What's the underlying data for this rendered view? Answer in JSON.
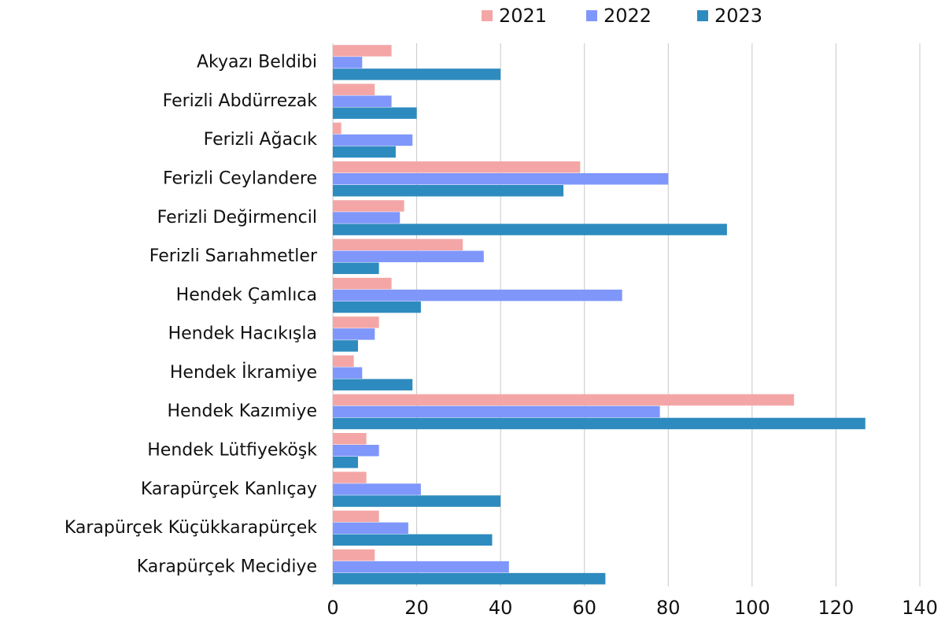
{
  "chart_data": {
    "type": "bar",
    "orientation": "horizontal",
    "categories": [
      "Akyazı Beldibi",
      "Ferizli Abdürrezak",
      "Ferizli Ağacık",
      "Ferizli Ceylandere",
      "Ferizli Değirmencil",
      "Ferizli Sarıahmetler",
      "Hendek Çamlıca",
      "Hendek Hacıkışla",
      "Hendek İkramiye",
      "Hendek Kazımiye",
      "Hendek Lütfiyeköşk",
      "Karapürçek Kanlıçay",
      "Karapürçek Küçükkarapürçek",
      "Karapürçek Mecidiye"
    ],
    "series": [
      {
        "name": "2021",
        "color": "#f4a6a6",
        "values": [
          14,
          10,
          2,
          59,
          17,
          31,
          14,
          11,
          5,
          110,
          8,
          8,
          11,
          10
        ]
      },
      {
        "name": "2022",
        "color": "#7f97fb",
        "values": [
          7,
          14,
          19,
          80,
          16,
          36,
          69,
          10,
          7,
          78,
          11,
          21,
          18,
          42
        ]
      },
      {
        "name": "2023",
        "color": "#2e8bbf",
        "values": [
          40,
          20,
          15,
          55,
          94,
          11,
          21,
          6,
          19,
          127,
          6,
          40,
          38,
          65
        ]
      }
    ],
    "xlim": [
      0,
      140
    ],
    "xticks": [
      0,
      20,
      40,
      60,
      80,
      100,
      120,
      140
    ],
    "grid": true,
    "legend": "top"
  }
}
